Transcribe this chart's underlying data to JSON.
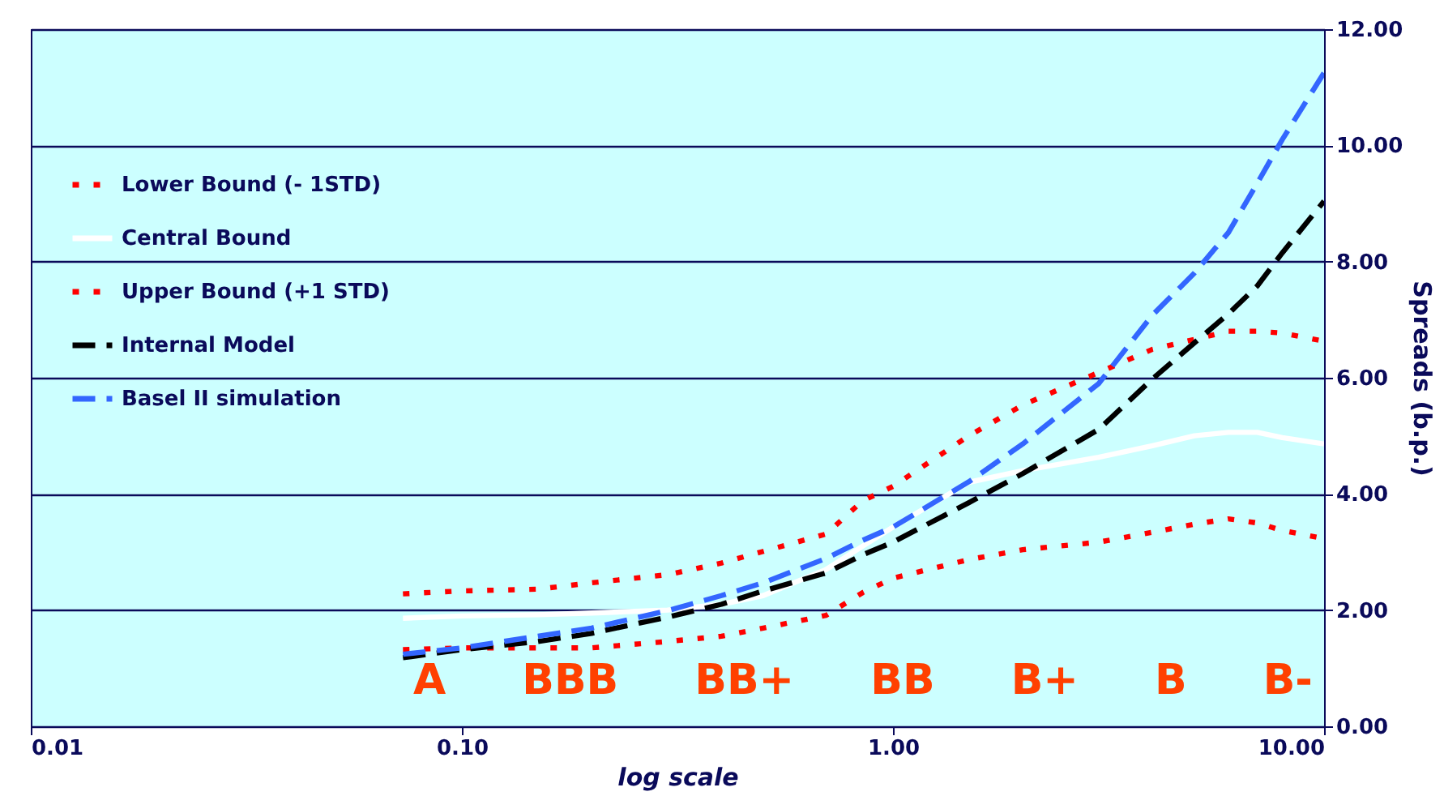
{
  "chart_data": {
    "type": "line",
    "x": [
      0.073,
      0.1,
      0.15,
      0.2,
      0.3,
      0.4,
      0.5,
      0.7,
      0.85,
      1,
      1.5,
      2,
      3,
      4,
      5,
      6,
      7,
      8,
      10
    ],
    "series": [
      {
        "name": "Lower Bound (- 1STD)",
        "color": "#ff0000",
        "line_style": "dotted",
        "values": [
          1.32,
          1.35,
          1.35,
          1.35,
          1.46,
          1.55,
          1.69,
          1.91,
          2.3,
          2.55,
          2.87,
          3.04,
          3.17,
          3.34,
          3.48,
          3.57,
          3.5,
          3.37,
          3.23
        ]
      },
      {
        "name": "Central Bound",
        "color": "#ffffff",
        "line_style": "solid",
        "values": [
          1.86,
          1.9,
          1.92,
          1.95,
          2.0,
          2.1,
          2.25,
          2.7,
          3.1,
          3.43,
          4.2,
          4.4,
          4.63,
          4.83,
          5.0,
          5.06,
          5.06,
          4.97,
          4.86
        ]
      },
      {
        "name": "Upper Bound (+1 STD)",
        "color": "#ff0000",
        "line_style": "dotted",
        "values": [
          2.28,
          2.33,
          2.36,
          2.47,
          2.61,
          2.81,
          3.01,
          3.31,
          3.88,
          4.13,
          5.0,
          5.53,
          6.09,
          6.49,
          6.66,
          6.8,
          6.8,
          6.77,
          6.63
        ]
      },
      {
        "name": "Internal Model",
        "color": "#000000",
        "line_style": "dashed",
        "values": [
          1.18,
          1.32,
          1.46,
          1.6,
          1.88,
          2.1,
          2.33,
          2.64,
          2.95,
          3.17,
          3.85,
          4.35,
          5.11,
          5.98,
          6.6,
          7.1,
          7.58,
          8.15,
          9.04
        ]
      },
      {
        "name": "Basel II simulation",
        "color": "#3366ff",
        "line_style": "dashed",
        "values": [
          1.24,
          1.35,
          1.55,
          1.69,
          1.99,
          2.25,
          2.47,
          2.89,
          3.2,
          3.43,
          4.21,
          4.86,
          5.9,
          7.08,
          7.8,
          8.5,
          9.35,
          10.1,
          11.25
        ]
      }
    ],
    "log": "x",
    "xlim": [
      0.01,
      10
    ],
    "xticks": [
      {
        "value": 0.01,
        "label": "0.01"
      },
      {
        "value": 0.1,
        "label": "0.10"
      },
      {
        "value": 1,
        "label": "1.00"
      },
      {
        "value": 10,
        "label": "10.00"
      }
    ],
    "ylim": [
      0,
      12
    ],
    "yticks": [
      {
        "value": 0,
        "label": "0.00"
      },
      {
        "value": 2,
        "label": "2.00"
      },
      {
        "value": 4,
        "label": "4.00"
      },
      {
        "value": 6,
        "label": "6.00"
      },
      {
        "value": 8,
        "label": "8.00"
      },
      {
        "value": 10,
        "label": "10.00"
      },
      {
        "value": 12,
        "label": "12.00"
      }
    ],
    "xlabel": "log scale",
    "ylabel": "Spreads (b.p.)",
    "grid": "y",
    "legend": "top left",
    "annotations": [
      "A",
      "BBB",
      "BB+",
      "BB",
      "B+",
      "B",
      "B-"
    ]
  }
}
